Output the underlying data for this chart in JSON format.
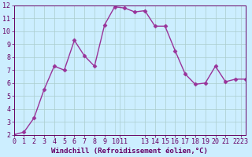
{
  "x": [
    0,
    1,
    2,
    3,
    4,
    5,
    6,
    7,
    8,
    9,
    10,
    11,
    12,
    13,
    14,
    15,
    16,
    17,
    18,
    19,
    20,
    21,
    22,
    23
  ],
  "y": [
    2.0,
    2.2,
    3.3,
    5.5,
    7.3,
    7.0,
    9.3,
    8.1,
    7.3,
    10.5,
    11.9,
    11.8,
    11.5,
    11.6,
    10.4,
    10.4,
    8.5,
    6.7,
    5.9,
    6.0,
    7.3,
    6.1,
    6.3,
    6.3
  ],
  "line_color": "#993399",
  "marker": "D",
  "marker_size": 2.5,
  "bg_color": "#cceeff",
  "grid_color": "#aacccc",
  "xlabel": "Windchill (Refroidissement éolien,°C)",
  "xlim": [
    0,
    23
  ],
  "ylim": [
    2,
    12
  ],
  "ytick_positions": [
    2,
    3,
    4,
    5,
    6,
    7,
    8,
    9,
    10,
    11,
    12
  ],
  "ytick_labels": [
    "2",
    "3",
    "4",
    "5",
    "6",
    "7",
    "8",
    "9",
    "10",
    "11",
    "12"
  ],
  "xtick_positions": [
    0,
    1,
    2,
    3,
    4,
    5,
    6,
    7,
    8,
    9,
    10.5,
    13,
    14,
    15,
    16,
    17,
    18,
    19,
    20,
    21,
    22.5
  ],
  "xtick_labels": [
    "0",
    "1",
    "2",
    "3",
    "4",
    "5",
    "6",
    "7",
    "8",
    "9",
    "1011",
    "13",
    "14",
    "15",
    "16",
    "17",
    "18",
    "19",
    "20",
    "21",
    "2223"
  ],
  "tick_color": "#660066",
  "xlabel_fontsize": 6.5,
  "tick_fontsize": 6.0,
  "linewidth": 1.0
}
